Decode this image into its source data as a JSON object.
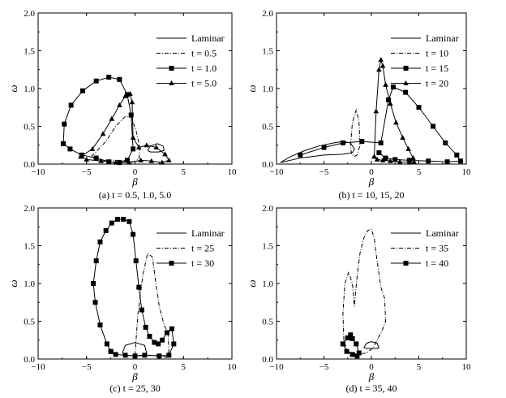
{
  "chart_data": [
    {
      "type": "line",
      "caption": "(a) t = 0.5, 1.0, 5.0",
      "xlabel": "β",
      "ylabel": "ω",
      "xlim": [
        -10,
        10
      ],
      "ylim": [
        0,
        2.0
      ],
      "xticks": [
        "−10",
        "−5",
        "0",
        "5",
        "10"
      ],
      "yticks": [
        "0.0",
        "0.5",
        "1.0",
        "1.5",
        "2.0"
      ],
      "legend_position": "top-right",
      "series": [
        {
          "name": "Laminar",
          "style": "solid",
          "marker": "none",
          "x": [
            1.3,
            1.6,
            2.3,
            2.9,
            3.0,
            2.4,
            1.6,
            1.3
          ],
          "y": [
            0.18,
            0.24,
            0.27,
            0.24,
            0.18,
            0.16,
            0.16,
            0.18
          ]
        },
        {
          "name": "t = 0.5",
          "style": "dashdot",
          "marker": "none",
          "x": [
            -4.5,
            -3.0,
            -2.0,
            -1.0,
            -0.4,
            0.1,
            0.5,
            0.4,
            -0.1,
            -0.5,
            -1.2,
            -2.5,
            -4.0,
            -4.5
          ],
          "y": [
            0.1,
            0.3,
            0.5,
            0.63,
            0.62,
            0.45,
            0.22,
            0.07,
            0.03,
            0.04,
            0.05,
            0.05,
            0.06,
            0.1
          ]
        },
        {
          "name": "t = 1.0",
          "style": "solid",
          "marker": "square",
          "x": [
            -7.4,
            -7.3,
            -6.6,
            -5.4,
            -4.0,
            -2.7,
            -1.6,
            -0.8,
            -0.4,
            -0.2,
            -0.8,
            -1.6,
            -2.7,
            -4.0,
            -5.5,
            -6.7,
            -7.4
          ],
          "y": [
            0.27,
            0.53,
            0.78,
            0.97,
            1.1,
            1.15,
            1.12,
            0.92,
            0.65,
            0.2,
            0.05,
            0.02,
            0.03,
            0.08,
            0.12,
            0.2,
            0.27
          ]
        },
        {
          "name": "t = 5.0",
          "style": "solid",
          "marker": "triangle",
          "x": [
            -5.6,
            -4.4,
            -3.3,
            -2.4,
            -1.6,
            -1.0,
            -0.5,
            -0.3,
            -0.2,
            0.4,
            1.2,
            2.2,
            3.1,
            3.5,
            2.8,
            1.7,
            0.6,
            -0.6,
            -2.0,
            -3.5,
            -5.0,
            -5.6
          ],
          "y": [
            0.1,
            0.2,
            0.4,
            0.6,
            0.78,
            0.9,
            0.93,
            0.82,
            0.35,
            0.22,
            0.25,
            0.22,
            0.13,
            0.05,
            0.02,
            0.04,
            0.05,
            0.02,
            0.02,
            0.04,
            0.06,
            0.1
          ]
        }
      ]
    },
    {
      "type": "line",
      "caption": "(b) t = 10, 15, 20",
      "xlabel": "β",
      "ylabel": "ω",
      "xlim": [
        -10,
        10
      ],
      "ylim": [
        0,
        2.0
      ],
      "xticks": [
        "−10",
        "−5",
        "0",
        "5",
        "10"
      ],
      "yticks": [
        "0.0",
        "0.5",
        "1.0",
        "1.5",
        "2.0"
      ],
      "legend_position": "top-right",
      "series": [
        {
          "name": "Laminar",
          "style": "solid",
          "marker": "none",
          "x": [
            -9.6,
            -8.5,
            -7.0,
            -5.5,
            -4.0,
            -3.0,
            -2.2,
            -1.8,
            -2.0,
            -3.0,
            -5.0,
            -7.5,
            -9.6
          ],
          "y": [
            0.02,
            0.1,
            0.18,
            0.24,
            0.28,
            0.3,
            0.28,
            0.2,
            0.15,
            0.13,
            0.12,
            0.08,
            0.02
          ]
        },
        {
          "name": "t = 10",
          "style": "dashdot",
          "marker": "none",
          "x": [
            -2.2,
            -2.0,
            -1.6,
            -1.3,
            -1.2,
            -1.5,
            -1.8,
            -2.1,
            -2.2
          ],
          "y": [
            0.25,
            0.55,
            0.72,
            0.55,
            0.25,
            0.12,
            0.1,
            0.13,
            0.25
          ]
        },
        {
          "name": "t = 15",
          "style": "solid",
          "marker": "square",
          "x": [
            -7.5,
            -5.0,
            -3.0,
            -1.0,
            1.0,
            1.8,
            2.3,
            3.6,
            5.0,
            6.5,
            7.8,
            9.0,
            9.4,
            8.0,
            6.0,
            4.0,
            2.5,
            1.5,
            0.8
          ],
          "y": [
            0.12,
            0.22,
            0.28,
            0.3,
            0.28,
            0.85,
            1.02,
            0.95,
            0.75,
            0.5,
            0.28,
            0.12,
            0.04,
            0.03,
            0.04,
            0.05,
            0.06,
            0.08,
            0.15
          ]
        },
        {
          "name": "t = 20",
          "style": "solid",
          "marker": "triangle",
          "x": [
            0.3,
            0.5,
            0.8,
            1.0,
            1.2,
            1.5,
            2.0,
            2.6,
            3.3,
            3.9,
            4.4,
            4.5,
            4.0,
            3.0,
            2.0,
            1.2,
            0.6,
            0.3
          ],
          "y": [
            0.1,
            0.7,
            1.25,
            1.38,
            1.3,
            1.05,
            0.8,
            0.55,
            0.35,
            0.2,
            0.08,
            0.03,
            0.02,
            0.03,
            0.04,
            0.05,
            0.06,
            0.1
          ]
        }
      ]
    },
    {
      "type": "line",
      "caption": "(c) t = 25, 30",
      "xlabel": "β",
      "ylabel": "ω",
      "xlim": [
        -10,
        10
      ],
      "ylim": [
        0,
        2.0
      ],
      "xticks": [
        "−10",
        "−5",
        "0",
        "5",
        "10"
      ],
      "yticks": [
        "0.0",
        "0.5",
        "1.0",
        "1.5",
        "2.0"
      ],
      "legend_position": "top-right",
      "series": [
        {
          "name": "Laminar",
          "style": "solid",
          "marker": "none",
          "x": [
            -1.3,
            -1.0,
            0.0,
            1.0,
            1.2,
            1.0,
            0.0,
            -1.0,
            -1.3
          ],
          "y": [
            0.08,
            0.18,
            0.22,
            0.18,
            0.08,
            0.05,
            0.04,
            0.05,
            0.08
          ]
        },
        {
          "name": "t = 25",
          "style": "dashdot",
          "marker": "none",
          "x": [
            0.0,
            0.3,
            0.8,
            1.3,
            1.8,
            2.1,
            2.5,
            3.0,
            3.4,
            3.5,
            3.2,
            2.7,
            1.9,
            1.2,
            0.5,
            0.0
          ],
          "y": [
            0.05,
            0.6,
            1.1,
            1.4,
            1.35,
            1.05,
            0.7,
            0.45,
            0.35,
            0.1,
            0.02,
            0.05,
            0.05,
            0.05,
            0.05,
            0.05
          ]
        },
        {
          "name": "t = 30",
          "style": "solid",
          "marker": "square",
          "x": [
            -2.5,
            -2.9,
            -3.6,
            -4.1,
            -4.3,
            -4.0,
            -3.6,
            -3.0,
            -2.4,
            -1.8,
            -1.2,
            -0.6,
            -0.2,
            0.1,
            0.4,
            0.7,
            1.1,
            1.5,
            2.0,
            2.4,
            2.8,
            3.3,
            3.8,
            4.0,
            3.5,
            2.5,
            1.0,
            0.0,
            -1.0,
            -2.0,
            -2.5
          ],
          "y": [
            0.1,
            0.2,
            0.45,
            0.75,
            1.0,
            1.3,
            1.55,
            1.7,
            1.8,
            1.85,
            1.85,
            1.82,
            1.65,
            1.3,
            0.95,
            0.65,
            0.42,
            0.3,
            0.22,
            0.2,
            0.25,
            0.35,
            0.4,
            0.2,
            0.05,
            0.04,
            0.05,
            0.04,
            0.05,
            0.06,
            0.1
          ]
        }
      ]
    },
    {
      "type": "line",
      "caption": "(d) t = 35, 40",
      "xlabel": "β",
      "ylabel": "ω",
      "xlim": [
        -10,
        10
      ],
      "ylim": [
        0,
        2.0
      ],
      "xticks": [
        "−10",
        "−5",
        "0",
        "5",
        "10"
      ],
      "yticks": [
        "0.0",
        "0.5",
        "1.0",
        "1.5",
        "2.0"
      ],
      "legend_position": "top-right",
      "series": [
        {
          "name": "Laminar",
          "style": "solid",
          "marker": "none",
          "x": [
            -0.8,
            -0.5,
            0.0,
            0.6,
            0.8,
            0.6,
            0.0,
            -0.5,
            -0.8
          ],
          "y": [
            0.15,
            0.21,
            0.23,
            0.21,
            0.15,
            0.14,
            0.14,
            0.14,
            0.15
          ]
        },
        {
          "name": "t = 35",
          "style": "dashdot",
          "marker": "none",
          "x": [
            -2.9,
            -3.0,
            -2.8,
            -2.4,
            -2.0,
            -1.8,
            -1.5,
            -1.2,
            -0.8,
            -0.4,
            0.0,
            0.3,
            0.6,
            1.0,
            1.4,
            1.5,
            1.2,
            0.6,
            0.2,
            -0.5,
            -1.5,
            -2.5,
            -2.9
          ],
          "y": [
            0.25,
            0.6,
            1.0,
            1.15,
            1.0,
            0.7,
            1.1,
            1.4,
            1.6,
            1.7,
            1.72,
            1.6,
            1.3,
            0.95,
            0.8,
            0.5,
            0.4,
            0.25,
            0.15,
            0.08,
            0.06,
            0.1,
            0.25
          ]
        },
        {
          "name": "t = 40",
          "style": "solid",
          "marker": "square",
          "x": [
            -3.0,
            -2.5,
            -2.2,
            -2.0,
            -1.6,
            -1.3,
            -1.5,
            -2.0,
            -2.6,
            -3.0
          ],
          "y": [
            0.2,
            0.28,
            0.32,
            0.27,
            0.2,
            0.08,
            0.04,
            0.06,
            0.1,
            0.2
          ]
        }
      ]
    }
  ]
}
